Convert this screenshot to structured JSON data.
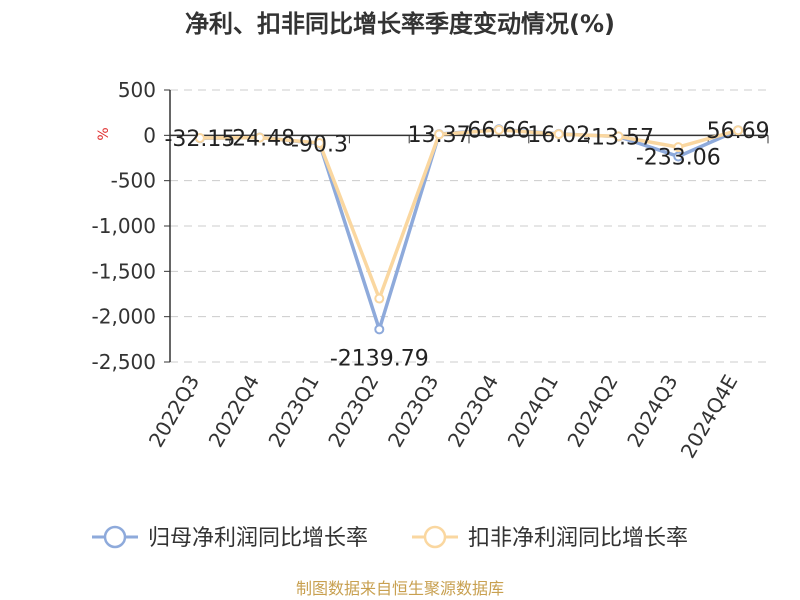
{
  "chart_data": {
    "type": "line",
    "title": "净利、扣非同比增长率季度变动情况(%)",
    "unit_label": "%",
    "categories": [
      "2022Q3",
      "2022Q4",
      "2023Q1",
      "2023Q2",
      "2023Q3",
      "2023Q4",
      "2024Q1",
      "2024Q2",
      "2024Q3",
      "2024Q4E"
    ],
    "ylim": [
      -2500,
      500
    ],
    "yticks": [
      500,
      0,
      -500,
      -1000,
      -1500,
      -2000,
      -2500
    ],
    "ytick_labels": [
      "500",
      "0",
      "-500",
      "-1,000",
      "-1,500",
      "-2,000",
      "-2,500"
    ],
    "grid": true,
    "legend_position": "bottom",
    "series": [
      {
        "name": "归母净利润同比增长率",
        "color": "#8eaadb",
        "values": [
          -32.15,
          -24.48,
          -90.3,
          -2139.79,
          13.37,
          66.66,
          16.02,
          -13.57,
          -233.06,
          56.69
        ],
        "labels": [
          "-32.15",
          "-24.48",
          "-90.3",
          "-2139.79",
          "13.37",
          "66.66",
          "16.02",
          "-13.57",
          "-233.06",
          "56.69"
        ]
      },
      {
        "name": "扣非净利润同比增长率",
        "color": "#fad7a0",
        "values": [
          -30,
          -25,
          -85,
          -1800,
          10,
          60,
          14,
          -12,
          -130,
          55
        ]
      }
    ],
    "source": "制图数据来自恒生聚源数据库"
  }
}
